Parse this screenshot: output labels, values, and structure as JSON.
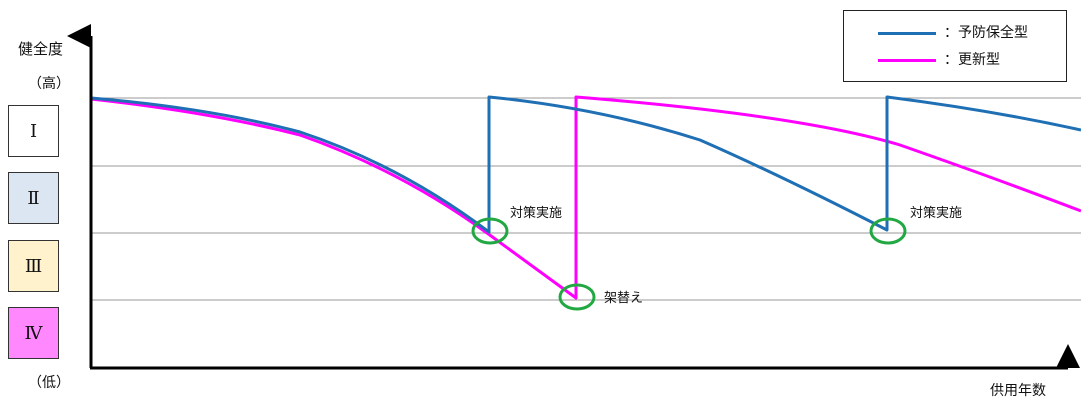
{
  "axis": {
    "y_label": "健全度",
    "y_high": "（高）",
    "y_low": "（低）",
    "x_label": "供用年数"
  },
  "levels": [
    {
      "label": "Ⅰ",
      "color": "#ffffff"
    },
    {
      "label": "Ⅱ",
      "color": "#dce6f2"
    },
    {
      "label": "Ⅲ",
      "color": "#fff2cc"
    },
    {
      "label": "Ⅳ",
      "color": "#ff88ff"
    }
  ],
  "legend": [
    {
      "label": "：予防保全型",
      "color": "#1f6fb4"
    },
    {
      "label": "：更新型",
      "color": "#ff00ff"
    }
  ],
  "annotations": {
    "action1": "対策実施",
    "action2": "対策実施",
    "replace": "架替え"
  },
  "colors": {
    "preventive": "#1f6fb4",
    "renewal": "#ff00ff",
    "marker": "#22a843",
    "gridline": "#999999",
    "axis": "#000000"
  }
}
